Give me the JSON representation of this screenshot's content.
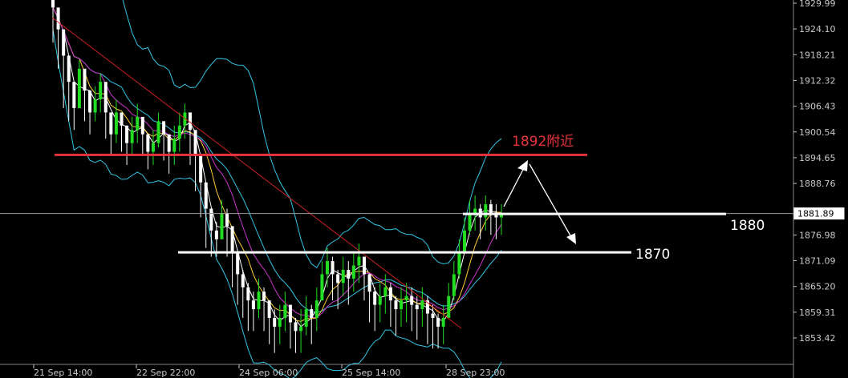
{
  "chart_data": {
    "type": "candlestick",
    "y_ticks": [
      "1929.99",
      "1924.10",
      "1918.21",
      "1912.32",
      "1906.43",
      "1900.54",
      "1894.65",
      "1888.76",
      "1876.98",
      "1871.09",
      "1865.20",
      "1859.31",
      "1853.42"
    ],
    "x_ticks": [
      "21 Sep 14:00",
      "22 Sep 22:00",
      "24 Sep 06:00",
      "25 Sep 14:00",
      "28 Sep 23:00"
    ],
    "ylim": [
      1848.5,
      1931.0
    ],
    "current_price": "1881.89",
    "current_value": 1881.89,
    "annotations": {
      "resistance_label": "1892附近",
      "resistance_value": 1892,
      "support1_label": "1880",
      "support1_value": 1880,
      "support2_label": "1870",
      "support2_value": 1870
    },
    "colors": {
      "background": "#000000",
      "bull": "#22dd22",
      "bear": "#ffffff",
      "bollinger": "#33c6e6",
      "ma_fast": "#ffffff",
      "ma_mid": "#ffcc33",
      "ma_slow": "#cc33cc",
      "trendline": "#cc2222",
      "resistance": "#e8323c",
      "support": "#ffffff",
      "grid": "#888888"
    },
    "grid": false,
    "close_series": [
      1929,
      1924,
      1918,
      1912,
      1906,
      1915,
      1910,
      1905,
      1908,
      1912,
      1905,
      1900,
      1905,
      1902,
      1898,
      1901,
      1904,
      1900,
      1896,
      1898,
      1903,
      1900,
      1896,
      1899,
      1902,
      1905,
      1901,
      1895,
      1889,
      1883,
      1878,
      1876,
      1882,
      1879,
      1873,
      1868,
      1865,
      1862,
      1860,
      1864,
      1862,
      1858,
      1856,
      1858,
      1861,
      1857,
      1855,
      1856,
      1860,
      1858,
      1862,
      1868,
      1871,
      1868,
      1866,
      1869,
      1867,
      1870,
      1872,
      1868,
      1864,
      1861,
      1863,
      1865,
      1862,
      1860,
      1862,
      1863,
      1861,
      1860,
      1862,
      1859,
      1858,
      1856,
      1858,
      1863,
      1868,
      1873,
      1878,
      1882,
      1883,
      1881,
      1884,
      1882,
      1881,
      1882
    ],
    "high_series": [
      1931,
      1928,
      1921,
      1916,
      1912,
      1917,
      1913,
      1909,
      1911,
      1914,
      1909,
      1904,
      1908,
      1905,
      1902,
      1904,
      1907,
      1903,
      1900,
      1901,
      1905,
      1903,
      1899,
      1902,
      1905,
      1907,
      1904,
      1899,
      1893,
      1887,
      1882,
      1880,
      1885,
      1883,
      1877,
      1872,
      1869,
      1866,
      1864,
      1867,
      1865,
      1862,
      1860,
      1861,
      1864,
      1861,
      1858,
      1860,
      1863,
      1861,
      1865,
      1871,
      1874,
      1872,
      1869,
      1872,
      1871,
      1873,
      1875,
      1872,
      1868,
      1865,
      1866,
      1868,
      1866,
      1863,
      1865,
      1866,
      1865,
      1863,
      1865,
      1863,
      1861,
      1859,
      1861,
      1866,
      1871,
      1876,
      1881,
      1885,
      1886,
      1884,
      1886,
      1885,
      1884,
      1884
    ],
    "low_series": [
      1921,
      1915,
      1906,
      1903,
      1901,
      1906,
      1903,
      1900,
      1903,
      1905,
      1899,
      1895,
      1898,
      1896,
      1893,
      1895,
      1898,
      1895,
      1892,
      1893,
      1897,
      1894,
      1891,
      1893,
      1896,
      1899,
      1893,
      1887,
      1881,
      1874,
      1872,
      1872,
      1876,
      1872,
      1865,
      1861,
      1858,
      1855,
      1855,
      1858,
      1855,
      1852,
      1850,
      1852,
      1855,
      1851,
      1850,
      1850,
      1854,
      1852,
      1855,
      1862,
      1865,
      1862,
      1860,
      1863,
      1861,
      1864,
      1866,
      1862,
      1857,
      1855,
      1857,
      1859,
      1856,
      1854,
      1856,
      1857,
      1855,
      1853,
      1856,
      1852,
      1851,
      1851,
      1852,
      1858,
      1862,
      1867,
      1873,
      1877,
      1878,
      1876,
      1878,
      1877,
      1876,
      1877
    ]
  }
}
